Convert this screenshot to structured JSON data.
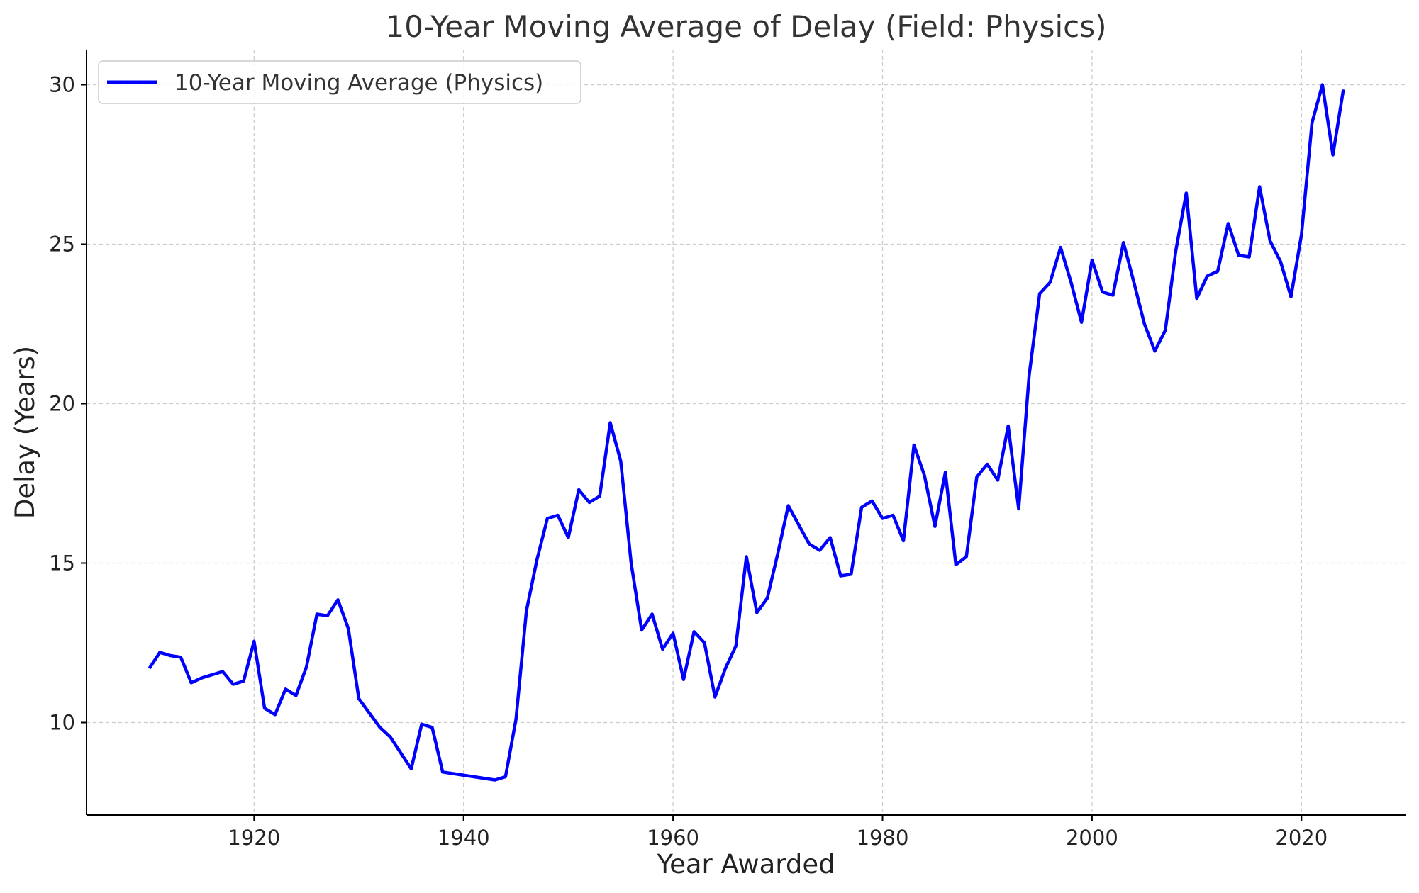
{
  "chart_data": {
    "type": "line",
    "title": "10-Year Moving Average of Delay (Field: Physics)",
    "xlabel": "Year Awarded",
    "ylabel": "Delay (Years)",
    "xlim": [
      1904,
      2030
    ],
    "ylim": [
      7.1,
      31.1
    ],
    "xticks": [
      1920,
      1940,
      1960,
      1980,
      2000,
      2020
    ],
    "yticks": [
      10,
      15,
      20,
      25,
      30
    ],
    "grid": true,
    "legend_position": "top-left",
    "series": [
      {
        "name": "10-Year Moving Average (Physics)",
        "color": "#0000ff",
        "x": [
          1910,
          1911,
          1912,
          1913,
          1914,
          1915,
          1917,
          1918,
          1919,
          1920,
          1921,
          1922,
          1923,
          1924,
          1925,
          1926,
          1927,
          1928,
          1929,
          1930,
          1931,
          1932,
          1933,
          1934,
          1935,
          1936,
          1937,
          1938,
          1943,
          1944,
          1945,
          1946,
          1947,
          1948,
          1949,
          1950,
          1951,
          1952,
          1953,
          1954,
          1955,
          1956,
          1957,
          1958,
          1959,
          1960,
          1961,
          1962,
          1963,
          1964,
          1965,
          1966,
          1967,
          1968,
          1969,
          1970,
          1971,
          1972,
          1973,
          1974,
          1975,
          1976,
          1977,
          1978,
          1979,
          1980,
          1981,
          1982,
          1983,
          1984,
          1985,
          1986,
          1987,
          1988,
          1989,
          1990,
          1991,
          1992,
          1993,
          1994,
          1995,
          1996,
          1997,
          1998,
          1999,
          2000,
          2001,
          2002,
          2003,
          2004,
          2005,
          2006,
          2007,
          2008,
          2009,
          2010,
          2011,
          2012,
          2013,
          2014,
          2015,
          2016,
          2017,
          2018,
          2019,
          2020,
          2021,
          2022,
          2023,
          2024
        ],
        "values": [
          11.7,
          12.2,
          12.1,
          12.05,
          11.25,
          11.4,
          11.6,
          11.2,
          11.3,
          12.55,
          10.45,
          10.25,
          11.05,
          10.85,
          11.75,
          13.4,
          13.35,
          13.85,
          12.95,
          10.75,
          10.3,
          9.85,
          9.55,
          9.05,
          8.55,
          9.95,
          9.85,
          8.45,
          8.2,
          8.3,
          10.1,
          13.5,
          15.1,
          16.4,
          16.5,
          15.8,
          17.3,
          16.9,
          17.1,
          19.4,
          18.2,
          15.0,
          12.9,
          13.4,
          12.3,
          12.8,
          11.35,
          12.85,
          12.5,
          10.8,
          11.7,
          12.4,
          15.2,
          13.45,
          13.9,
          15.3,
          16.8,
          16.2,
          15.6,
          15.4,
          15.8,
          14.6,
          14.65,
          16.75,
          16.95,
          16.4,
          16.5,
          15.7,
          18.7,
          17.75,
          16.15,
          17.85,
          14.95,
          15.2,
          17.7,
          18.1,
          17.6,
          19.3,
          16.7,
          20.9,
          23.45,
          23.8,
          24.9,
          23.8,
          22.55,
          24.5,
          23.5,
          23.4,
          25.05,
          23.8,
          22.5,
          21.65,
          22.3,
          24.8,
          26.6,
          23.3,
          24.0,
          24.15,
          25.65,
          24.65,
          24.6,
          26.8,
          25.1,
          24.45,
          23.35,
          25.3,
          28.8,
          30.0,
          27.8,
          29.85
        ]
      }
    ]
  }
}
